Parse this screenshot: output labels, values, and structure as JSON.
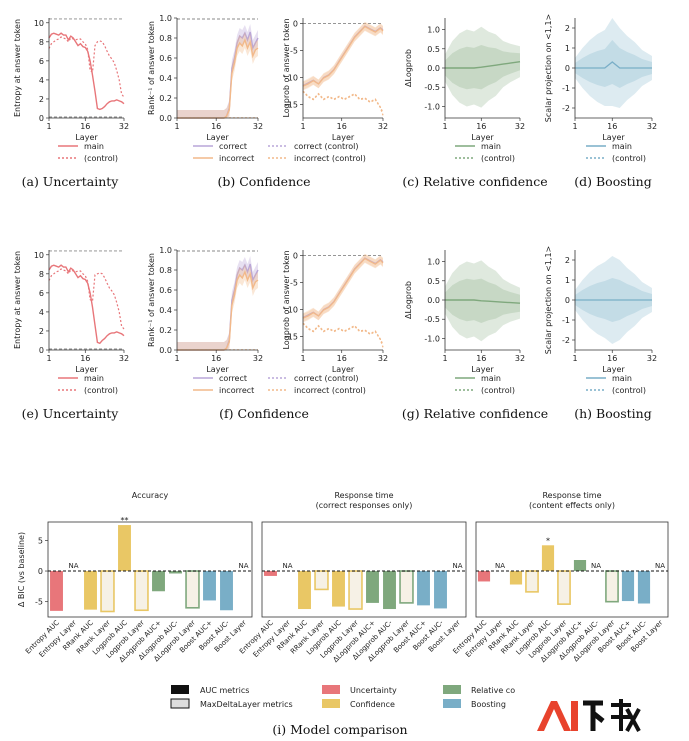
{
  "colors": {
    "uncertainty": "#e8767a",
    "confidence": "#e9c765",
    "relative": "#7fa87d",
    "boosting": "#79aec7",
    "correct": "#b9a6d8",
    "incorrect": "#f2b98a",
    "dashed": "#888888"
  },
  "panels": [
    {
      "id": "a",
      "caption": "(a) Uncertainty",
      "xlabel": "Layer",
      "ylabel": "Entropy at answer token",
      "yticks": [
        "0",
        "2",
        "4",
        "6",
        "8",
        "10"
      ],
      "xticks": [
        "1",
        "16",
        "32"
      ],
      "legend": [
        {
          "label": "main",
          "style": "solid"
        },
        {
          "label": "(control)",
          "style": "dotted"
        }
      ]
    },
    {
      "id": "b",
      "caption": "(b) Confidence",
      "xlabel": "Layer",
      "ylabel": "Rank⁻¹ of answer token",
      "ylabel2": "Logprob of answer token",
      "yticks": [
        "0.0",
        "0.2",
        "0.4",
        "0.6",
        "0.8",
        "1.0"
      ],
      "yticks2": [
        "0",
        "-5",
        "-10",
        "-15"
      ],
      "xticks": [
        "1",
        "16",
        "32"
      ],
      "legend": [
        {
          "label": "correct",
          "style": "solid",
          "color": "correct"
        },
        {
          "label": "incorrect",
          "style": "solid",
          "color": "incorrect"
        },
        {
          "label": "correct (control)",
          "style": "dotted",
          "color": "correct"
        },
        {
          "label": "incorrect (control)",
          "style": "dotted",
          "color": "incorrect"
        }
      ]
    },
    {
      "id": "c",
      "caption": "(c) Relative confidence",
      "xlabel": "Layer",
      "ylabel": "ΔLogprob",
      "yticks": [
        "-1.0",
        "-0.5",
        "0.0",
        "0.5",
        "1.0"
      ],
      "xticks": [
        "1",
        "16",
        "32"
      ],
      "legend": [
        {
          "label": "main",
          "style": "solid"
        },
        {
          "label": "(control)",
          "style": "dotted"
        }
      ]
    },
    {
      "id": "d",
      "caption": "(d) Boosting",
      "xlabel": "Layer",
      "ylabel": "Scalar projection on <1,1>",
      "yticks": [
        "-2",
        "-1",
        "0",
        "1",
        "2"
      ],
      "xticks": [
        "1",
        "16",
        "32"
      ],
      "legend": [
        {
          "label": "main",
          "style": "solid"
        },
        {
          "label": "(control)",
          "style": "dotted"
        }
      ]
    },
    {
      "id": "e",
      "caption": "(e) Uncertainty"
    },
    {
      "id": "f",
      "caption": "(f) Confidence"
    },
    {
      "id": "g",
      "caption": "(g) Relative confidence"
    },
    {
      "id": "h",
      "caption": "(h) Boosting"
    }
  ],
  "bottom": {
    "caption": "(i) Model comparison",
    "ylabel": "Δ BIC (vs baseline)",
    "yticks": [
      "-5",
      "0",
      "5"
    ],
    "categories": [
      "Entropy AUC",
      "Entropy Layer",
      "RRank AUC",
      "RRank Layer",
      "Logprob AUC",
      "Logprob Layer",
      "ΔLogprob AUC+",
      "ΔLogprob AUC-",
      "ΔLogprob Layer",
      "Boost AUC+",
      "Boost AUC-",
      "Boost Layer"
    ],
    "na_label": "NA",
    "legend": [
      {
        "label": "AUC metrics",
        "kind": "filled"
      },
      {
        "label": "MaxDeltaLayer metrics",
        "kind": "outline"
      },
      {
        "label": "Uncertainty",
        "color": "uncertainty"
      },
      {
        "label": "Confidence",
        "color": "confidence"
      },
      {
        "label": "Relative co",
        "color": "relative"
      },
      {
        "label": "Boosting",
        "color": "boosting"
      }
    ]
  },
  "chart_data": [
    {
      "type": "line",
      "panel": "a",
      "title": "",
      "xlabel": "Layer",
      "ylabel": "Entropy at answer token",
      "xlim": [
        1,
        32
      ],
      "ylim": [
        0,
        10.5
      ],
      "x": [
        1,
        2,
        3,
        4,
        5,
        6,
        7,
        8,
        9,
        10,
        11,
        12,
        13,
        14,
        15,
        16,
        17,
        18,
        19,
        20,
        21,
        22,
        23,
        24,
        25,
        26,
        27,
        28,
        29,
        30,
        31,
        32
      ],
      "series": [
        {
          "name": "main",
          "values": [
            8.4,
            8.8,
            8.9,
            8.8,
            8.7,
            8.9,
            8.7,
            8.7,
            8.2,
            8.6,
            8.4,
            8.0,
            7.6,
            7.8,
            7.5,
            7.4,
            7.0,
            6.0,
            4.5,
            2.8,
            1.0,
            0.9,
            1.0,
            1.2,
            1.5,
            1.7,
            1.8,
            1.8,
            1.9,
            1.8,
            1.7,
            1.5
          ]
        },
        {
          "name": "(control)",
          "values": [
            7.3,
            7.8,
            8.0,
            8.2,
            8.3,
            8.5,
            8.4,
            8.3,
            8.0,
            8.4,
            8.3,
            8.2,
            8.3,
            8.3,
            8.0,
            7.8,
            7.2,
            5.0,
            4.8,
            7.6,
            8.0,
            8.1,
            8.0,
            7.6,
            7.0,
            6.5,
            6.2,
            5.8,
            5.0,
            4.0,
            2.5,
            2.2
          ]
        }
      ],
      "reference_lines": [
        0,
        10.4
      ]
    },
    {
      "type": "line",
      "panel": "b",
      "xlabel": "Layer",
      "ylabel": "Rank⁻¹ of answer token",
      "xlim": [
        1,
        32
      ],
      "ylim": [
        0,
        1
      ],
      "x": [
        1,
        4,
        8,
        12,
        16,
        18,
        19,
        20,
        21,
        22,
        23,
        24,
        25,
        26,
        27,
        28,
        29,
        30,
        31,
        32
      ],
      "series": [
        {
          "name": "correct",
          "values": [
            0,
            0,
            0,
            0,
            0,
            0,
            0,
            0.02,
            0.1,
            0.5,
            0.6,
            0.75,
            0.82,
            0.8,
            0.85,
            0.78,
            0.86,
            0.7,
            0.75,
            0.8
          ]
        },
        {
          "name": "incorrect",
          "values": [
            0,
            0,
            0,
            0,
            0,
            0,
            0,
            0.02,
            0.08,
            0.45,
            0.55,
            0.7,
            0.75,
            0.72,
            0.78,
            0.7,
            0.76,
            0.62,
            0.68,
            0.7
          ]
        }
      ],
      "reference_lines": [
        1.0
      ]
    },
    {
      "type": "line",
      "panel": "b2",
      "xlabel": "Layer",
      "ylabel": "Logprob of answer token",
      "xlim": [
        1,
        32
      ],
      "ylim": [
        -17.5,
        1
      ],
      "x": [
        1,
        3,
        5,
        7,
        9,
        11,
        13,
        15,
        17,
        19,
        21,
        23,
        25,
        27,
        29,
        31,
        32
      ],
      "series": [
        {
          "name": "correct",
          "values": [
            -11.5,
            -11,
            -10.5,
            -11.2,
            -10,
            -9.5,
            -8.5,
            -7,
            -5.5,
            -4,
            -2.5,
            -1.5,
            -0.5,
            -1,
            -1.5,
            -0.8,
            -1.2
          ]
        },
        {
          "name": "incorrect",
          "values": [
            -11.6,
            -11.2,
            -10.6,
            -11.2,
            -10.1,
            -9.6,
            -8.6,
            -7.1,
            -5.6,
            -4.1,
            -2.6,
            -1.6,
            -0.6,
            -1.1,
            -1.6,
            -0.9,
            -1.4
          ]
        },
        {
          "name": "correct (control)",
          "values": [
            -12.5,
            -13.5,
            -14,
            -13,
            -14,
            -13.5,
            -14,
            -13.5,
            -14,
            -13.5,
            -13,
            -14,
            -13.8,
            -14.5,
            -14,
            -15.5,
            -16.5
          ]
        },
        {
          "name": "incorrect (control)",
          "values": [
            -12.6,
            -13.6,
            -14.1,
            -13.1,
            -14.1,
            -13.6,
            -14.1,
            -13.6,
            -14.1,
            -13.6,
            -13.1,
            -14.1,
            -13.9,
            -14.6,
            -14.1,
            -15.6,
            -17
          ]
        }
      ],
      "reference_lines": [
        0
      ]
    },
    {
      "type": "line",
      "panel": "c",
      "xlabel": "Layer",
      "ylabel": "ΔLogprob",
      "xlim": [
        1,
        32
      ],
      "ylim": [
        -1.3,
        1.3
      ],
      "x": [
        1,
        4,
        8,
        12,
        16,
        20,
        24,
        28,
        32
      ],
      "series": [
        {
          "name": "main",
          "values": [
            0,
            0,
            0.02,
            0,
            0.05,
            0.12,
            0.15,
            0.16,
            0.15
          ]
        }
      ]
    },
    {
      "type": "line",
      "panel": "d",
      "xlabel": "Layer",
      "ylabel": "Scalar projection on <1,1>",
      "xlim": [
        1,
        32
      ],
      "ylim": [
        -2.5,
        2.5
      ],
      "x": [
        1,
        4,
        8,
        12,
        14,
        16,
        17,
        18,
        20,
        24,
        28,
        32
      ],
      "series": [
        {
          "name": "main",
          "values": [
            0,
            0,
            0,
            0,
            0.1,
            0.35,
            0.1,
            0,
            0,
            0,
            0,
            0
          ]
        }
      ]
    },
    {
      "type": "bar",
      "panel": "i-1",
      "title": "Accuracy",
      "ylabel": "Δ BIC (vs baseline)",
      "ylim": [
        -7.5,
        8
      ],
      "categories": [
        "Entropy AUC",
        "Entropy Layer",
        "RRank AUC",
        "RRank Layer",
        "Logprob AUC",
        "Logprob Layer",
        "ΔLogprob AUC+",
        "ΔLogprob AUC-",
        "ΔLogprob Layer",
        "Boost AUC+",
        "Boost AUC-",
        "Boost Layer"
      ],
      "values": [
        -6.5,
        null,
        -6.3,
        -6.6,
        7.5,
        -6.4,
        -3.3,
        -0.4,
        -6.0,
        -4.8,
        -6.4,
        null
      ],
      "annotations": [
        {
          "category": "Logprob AUC",
          "text": "**"
        }
      ]
    },
    {
      "type": "bar",
      "panel": "i-2",
      "title": "Response time\n(correct responses only)",
      "ylim": [
        -7.5,
        8
      ],
      "categories": [
        "Entropy AUC",
        "Entropy Layer",
        "RRank AUC",
        "RRank Layer",
        "Logprob AUC",
        "Logprob Layer",
        "ΔLogprob AUC+",
        "ΔLogprob AUC-",
        "ΔLogprob Layer",
        "Boost AUC+",
        "Boost AUC-",
        "Boost Layer"
      ],
      "values": [
        -0.8,
        null,
        -6.2,
        -3.0,
        -5.8,
        -6.2,
        -5.2,
        -6.2,
        -5.2,
        -5.6,
        -6.1,
        null
      ]
    },
    {
      "type": "bar",
      "panel": "i-3",
      "title": "Response time\n(content effects only)",
      "ylim": [
        -7.5,
        8
      ],
      "categories": [
        "Entropy AUC",
        "Entropy Layer",
        "RRank AUC",
        "RRank Layer",
        "Logprob AUC",
        "Logprob Layer",
        "ΔLogprob AUC+",
        "ΔLogprob AUC-",
        "ΔLogprob Layer",
        "Boost AUC+",
        "Boost AUC-",
        "Boost Layer"
      ],
      "values": [
        -1.7,
        null,
        -2.2,
        -3.4,
        4.2,
        -5.4,
        1.8,
        null,
        -5.0,
        -4.9,
        -5.3,
        null
      ],
      "annotations": [
        {
          "category": "Logprob AUC",
          "text": "*"
        }
      ]
    }
  ]
}
